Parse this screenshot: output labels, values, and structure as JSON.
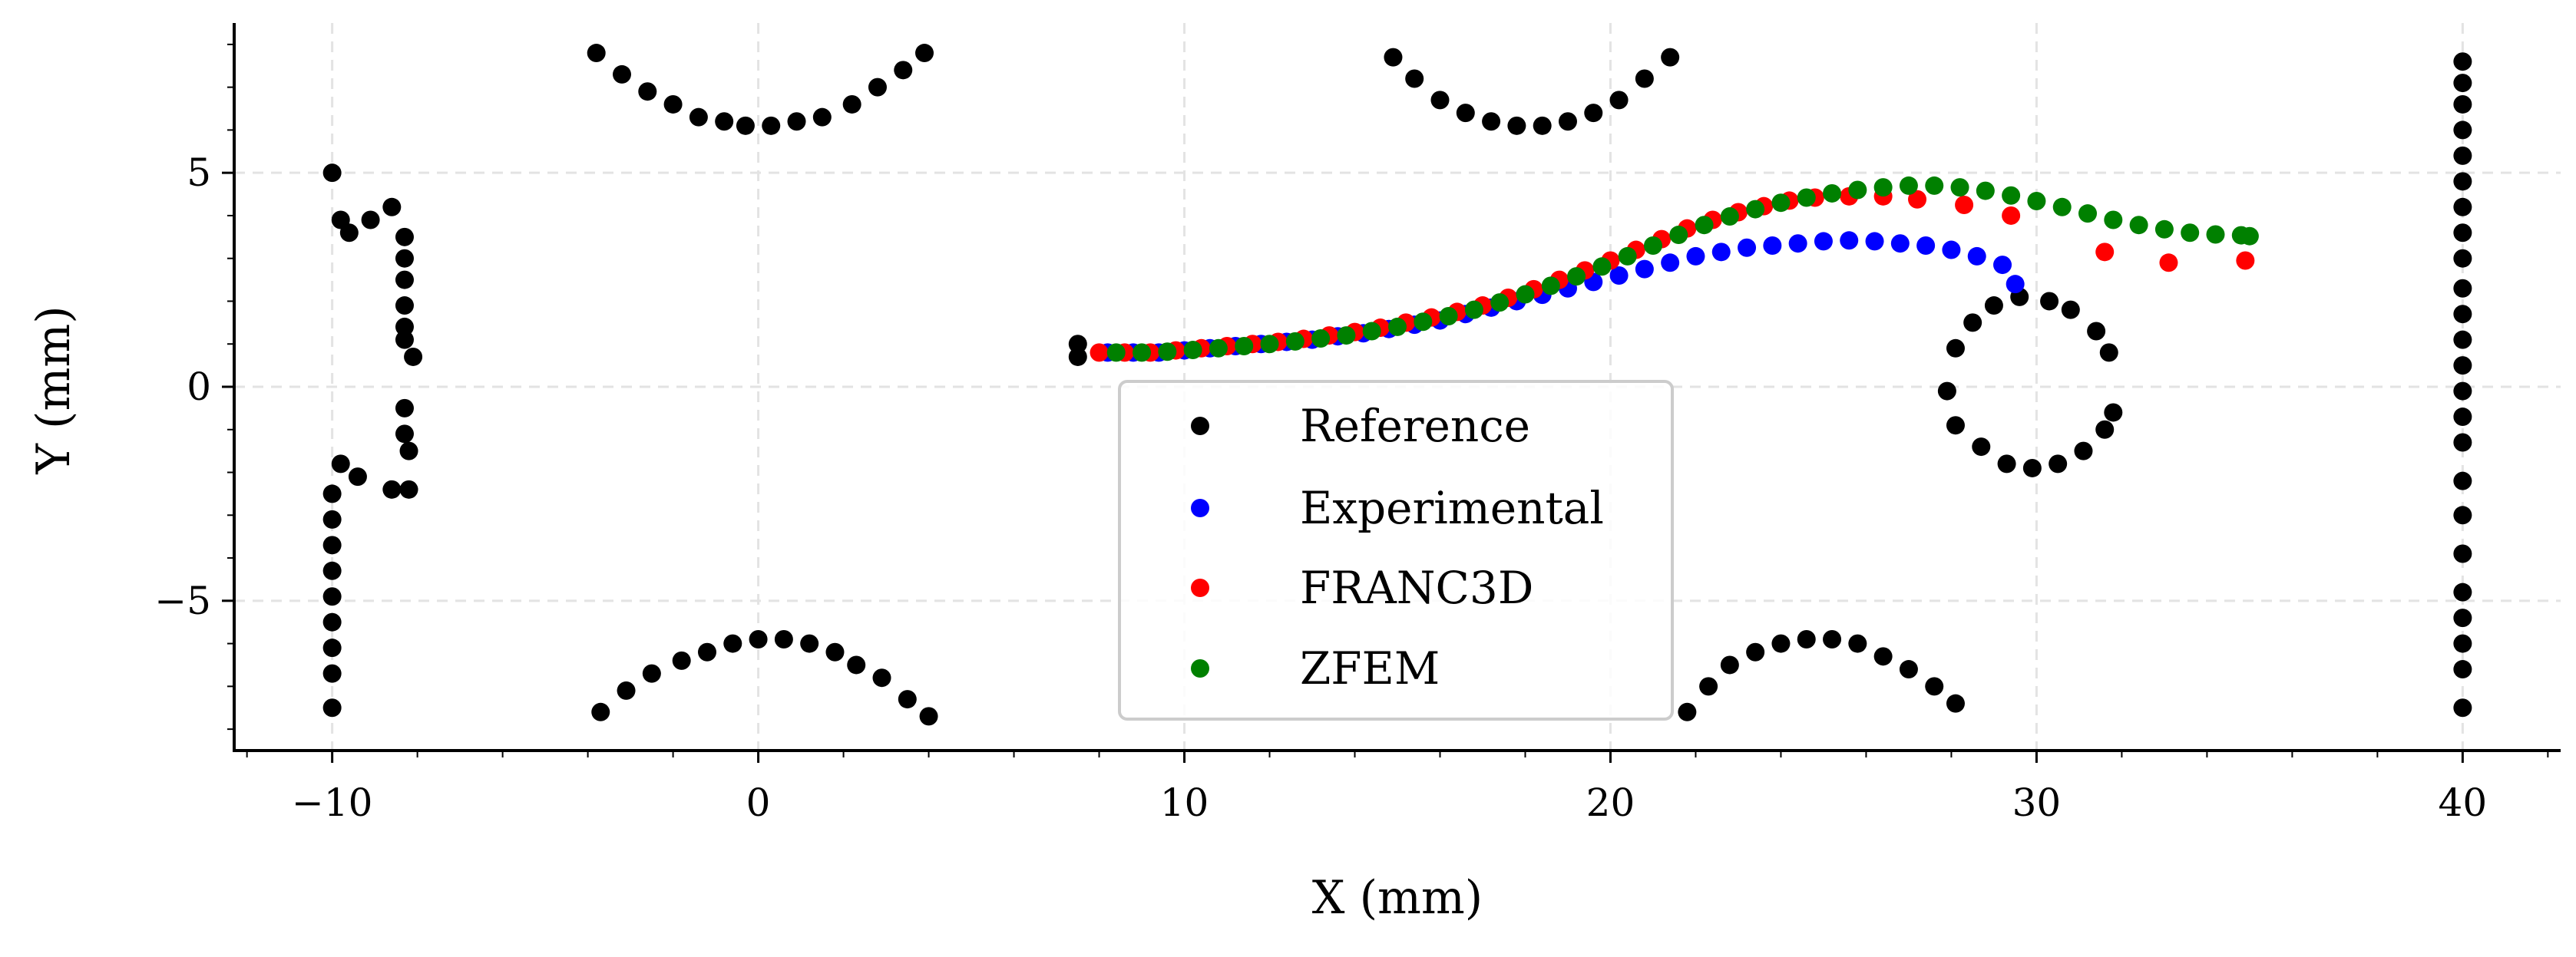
{
  "chart_data": {
    "type": "scatter",
    "xlabel": "X (mm)",
    "ylabel": "Y (mm)",
    "xlim": [
      -12.3,
      42.3
    ],
    "ylim": [
      -8.5,
      8.5
    ],
    "xticks": [
      -10,
      0,
      10,
      20,
      30,
      40
    ],
    "xtick_labels": [
      "−10",
      "0",
      "10",
      "20",
      "30",
      "40"
    ],
    "yticks": [
      -5,
      0,
      5
    ],
    "ytick_labels": [
      "−5",
      "0",
      "5"
    ],
    "grid": true,
    "legend_position": "lower-center",
    "series": [
      {
        "name": "Reference",
        "color": "#000000",
        "points": [
          [
            -10,
            5
          ],
          [
            -9.8,
            3.9
          ],
          [
            -9.6,
            3.6
          ],
          [
            -9.1,
            3.9
          ],
          [
            -8.6,
            4.2
          ],
          [
            -8.3,
            3.5
          ],
          [
            -8.3,
            3.0
          ],
          [
            -8.3,
            2.5
          ],
          [
            -8.3,
            1.9
          ],
          [
            -8.3,
            1.4
          ],
          [
            -8.3,
            1.1
          ],
          [
            -8.1,
            0.7
          ],
          [
            -8.3,
            -0.5
          ],
          [
            -8.3,
            -1.1
          ],
          [
            -8.2,
            -1.5
          ],
          [
            -8.2,
            -2.4
          ],
          [
            -8.6,
            -2.4
          ],
          [
            -9.4,
            -2.1
          ],
          [
            -9.8,
            -1.8
          ],
          [
            -10,
            -2.5
          ],
          [
            -10,
            -3.1
          ],
          [
            -10,
            -3.7
          ],
          [
            -10,
            -4.3
          ],
          [
            -10,
            -4.9
          ],
          [
            -10,
            -5.5
          ],
          [
            -10,
            -6.1
          ],
          [
            -10,
            -6.7
          ],
          [
            -10,
            -7.5
          ],
          [
            -3.8,
            7.8
          ],
          [
            -3.2,
            7.3
          ],
          [
            -2.6,
            6.9
          ],
          [
            -2,
            6.6
          ],
          [
            -1.4,
            6.3
          ],
          [
            -0.8,
            6.2
          ],
          [
            -0.3,
            6.1
          ],
          [
            0.3,
            6.1
          ],
          [
            0.9,
            6.2
          ],
          [
            1.5,
            6.3
          ],
          [
            2.2,
            6.6
          ],
          [
            2.8,
            7.0
          ],
          [
            3.4,
            7.4
          ],
          [
            3.9,
            7.8
          ],
          [
            -3.7,
            -7.6
          ],
          [
            -3.1,
            -7.1
          ],
          [
            -2.5,
            -6.7
          ],
          [
            -1.8,
            -6.4
          ],
          [
            -1.2,
            -6.2
          ],
          [
            -0.6,
            -6.0
          ],
          [
            0,
            -5.9
          ],
          [
            0.6,
            -5.9
          ],
          [
            1.2,
            -6.0
          ],
          [
            1.8,
            -6.2
          ],
          [
            2.3,
            -6.5
          ],
          [
            2.9,
            -6.8
          ],
          [
            3.5,
            -7.3
          ],
          [
            4,
            -7.7
          ],
          [
            14.9,
            7.7
          ],
          [
            15.4,
            7.2
          ],
          [
            16,
            6.7
          ],
          [
            16.6,
            6.4
          ],
          [
            17.2,
            6.2
          ],
          [
            17.8,
            6.1
          ],
          [
            18.4,
            6.1
          ],
          [
            19,
            6.2
          ],
          [
            19.6,
            6.4
          ],
          [
            20.2,
            6.7
          ],
          [
            20.8,
            7.2
          ],
          [
            21.4,
            7.7
          ],
          [
            21.8,
            -7.6
          ],
          [
            22.3,
            -7.0
          ],
          [
            22.8,
            -6.5
          ],
          [
            23.4,
            -6.2
          ],
          [
            24,
            -6.0
          ],
          [
            24.6,
            -5.9
          ],
          [
            25.2,
            -5.9
          ],
          [
            25.8,
            -6.0
          ],
          [
            26.4,
            -6.3
          ],
          [
            27,
            -6.6
          ],
          [
            27.6,
            -7.0
          ],
          [
            28.1,
            -7.4
          ],
          [
            7.5,
            1.0
          ],
          [
            7.5,
            0.7
          ],
          [
            27.9,
            -0.1
          ],
          [
            28.1,
            0.9
          ],
          [
            28.5,
            1.5
          ],
          [
            29,
            1.9
          ],
          [
            29.6,
            2.1
          ],
          [
            30.3,
            2.0
          ],
          [
            30.8,
            1.8
          ],
          [
            31.4,
            1.3
          ],
          [
            31.7,
            0.8
          ],
          [
            31.8,
            -0.6
          ],
          [
            31.6,
            -1.0
          ],
          [
            31.1,
            -1.5
          ],
          [
            30.5,
            -1.8
          ],
          [
            29.9,
            -1.9
          ],
          [
            29.3,
            -1.8
          ],
          [
            28.7,
            -1.4
          ],
          [
            28.1,
            -0.9
          ],
          [
            40,
            7.6
          ],
          [
            40,
            7.1
          ],
          [
            40,
            6.6
          ],
          [
            40,
            6.0
          ],
          [
            40,
            5.4
          ],
          [
            40,
            4.8
          ],
          [
            40,
            4.2
          ],
          [
            40,
            3.6
          ],
          [
            40,
            3.0
          ],
          [
            40,
            2.3
          ],
          [
            40,
            1.7
          ],
          [
            40,
            1.1
          ],
          [
            40,
            0.5
          ],
          [
            40,
            -0.1
          ],
          [
            40,
            -0.7
          ],
          [
            40,
            -1.3
          ],
          [
            40,
            -2.2
          ],
          [
            40,
            -3.0
          ],
          [
            40,
            -3.9
          ],
          [
            40,
            -4.8
          ],
          [
            40,
            -5.4
          ],
          [
            40,
            -6.0
          ],
          [
            40,
            -6.6
          ],
          [
            40,
            -7.5
          ]
        ]
      },
      {
        "name": "Experimental",
        "color": "#0000ff",
        "points": [
          [
            8.2,
            0.8
          ],
          [
            8.8,
            0.8
          ],
          [
            9.4,
            0.8
          ],
          [
            10,
            0.85
          ],
          [
            10.6,
            0.9
          ],
          [
            11.2,
            0.95
          ],
          [
            11.8,
            1.0
          ],
          [
            12.4,
            1.05
          ],
          [
            13,
            1.1
          ],
          [
            13.6,
            1.18
          ],
          [
            14.2,
            1.25
          ],
          [
            14.8,
            1.35
          ],
          [
            15.4,
            1.45
          ],
          [
            16,
            1.55
          ],
          [
            16.6,
            1.7
          ],
          [
            17.2,
            1.85
          ],
          [
            17.8,
            2.0
          ],
          [
            18.4,
            2.15
          ],
          [
            19,
            2.3
          ],
          [
            19.6,
            2.45
          ],
          [
            20.2,
            2.6
          ],
          [
            20.8,
            2.75
          ],
          [
            21.4,
            2.9
          ],
          [
            22,
            3.05
          ],
          [
            22.6,
            3.15
          ],
          [
            23.2,
            3.25
          ],
          [
            23.8,
            3.3
          ],
          [
            24.4,
            3.35
          ],
          [
            25,
            3.4
          ],
          [
            25.6,
            3.42
          ],
          [
            26.2,
            3.4
          ],
          [
            26.8,
            3.35
          ],
          [
            27.4,
            3.3
          ],
          [
            28,
            3.2
          ],
          [
            28.6,
            3.05
          ],
          [
            29.2,
            2.85
          ],
          [
            29.5,
            2.4
          ]
        ]
      },
      {
        "name": "FRANC3D",
        "color": "#ff0000",
        "points": [
          [
            8.0,
            0.8
          ],
          [
            8.6,
            0.8
          ],
          [
            9.2,
            0.8
          ],
          [
            9.8,
            0.85
          ],
          [
            10.4,
            0.9
          ],
          [
            11,
            0.95
          ],
          [
            11.6,
            1.0
          ],
          [
            12.2,
            1.05
          ],
          [
            12.8,
            1.12
          ],
          [
            13.4,
            1.2
          ],
          [
            14,
            1.28
          ],
          [
            14.6,
            1.38
          ],
          [
            15.2,
            1.5
          ],
          [
            15.8,
            1.62
          ],
          [
            16.4,
            1.75
          ],
          [
            17,
            1.9
          ],
          [
            17.6,
            2.08
          ],
          [
            18.2,
            2.28
          ],
          [
            18.8,
            2.5
          ],
          [
            19.4,
            2.72
          ],
          [
            20,
            2.95
          ],
          [
            20.6,
            3.2
          ],
          [
            21.2,
            3.45
          ],
          [
            21.8,
            3.7
          ],
          [
            22.4,
            3.9
          ],
          [
            23,
            4.08
          ],
          [
            23.6,
            4.22
          ],
          [
            24.2,
            4.35
          ],
          [
            24.8,
            4.42
          ],
          [
            25.6,
            4.45
          ],
          [
            26.4,
            4.45
          ],
          [
            27.2,
            4.38
          ],
          [
            28.3,
            4.25
          ],
          [
            29.4,
            4.0
          ],
          [
            31.6,
            3.15
          ],
          [
            33.1,
            2.9
          ],
          [
            34.9,
            2.95
          ]
        ]
      },
      {
        "name": "ZFEM",
        "color": "#008000",
        "points": [
          [
            8.4,
            0.8
          ],
          [
            9,
            0.8
          ],
          [
            9.6,
            0.82
          ],
          [
            10.2,
            0.86
          ],
          [
            10.8,
            0.9
          ],
          [
            11.4,
            0.95
          ],
          [
            12,
            1.0
          ],
          [
            12.6,
            1.06
          ],
          [
            13.2,
            1.13
          ],
          [
            13.8,
            1.2
          ],
          [
            14.4,
            1.3
          ],
          [
            15,
            1.4
          ],
          [
            15.6,
            1.52
          ],
          [
            16.2,
            1.65
          ],
          [
            16.8,
            1.8
          ],
          [
            17.4,
            1.97
          ],
          [
            18,
            2.16
          ],
          [
            18.6,
            2.36
          ],
          [
            19.2,
            2.58
          ],
          [
            19.8,
            2.81
          ],
          [
            20.4,
            3.05
          ],
          [
            21,
            3.3
          ],
          [
            21.6,
            3.55
          ],
          [
            22.2,
            3.78
          ],
          [
            22.8,
            3.98
          ],
          [
            23.4,
            4.15
          ],
          [
            24,
            4.3
          ],
          [
            24.6,
            4.42
          ],
          [
            25.2,
            4.52
          ],
          [
            25.8,
            4.6
          ],
          [
            26.4,
            4.66
          ],
          [
            27,
            4.7
          ],
          [
            27.6,
            4.7
          ],
          [
            28.2,
            4.66
          ],
          [
            28.8,
            4.58
          ],
          [
            29.4,
            4.47
          ],
          [
            30,
            4.34
          ],
          [
            30.6,
            4.2
          ],
          [
            31.2,
            4.05
          ],
          [
            31.8,
            3.9
          ],
          [
            32.4,
            3.78
          ],
          [
            33,
            3.68
          ],
          [
            33.6,
            3.6
          ],
          [
            34.2,
            3.56
          ],
          [
            34.8,
            3.54
          ],
          [
            35,
            3.52
          ]
        ]
      }
    ]
  }
}
